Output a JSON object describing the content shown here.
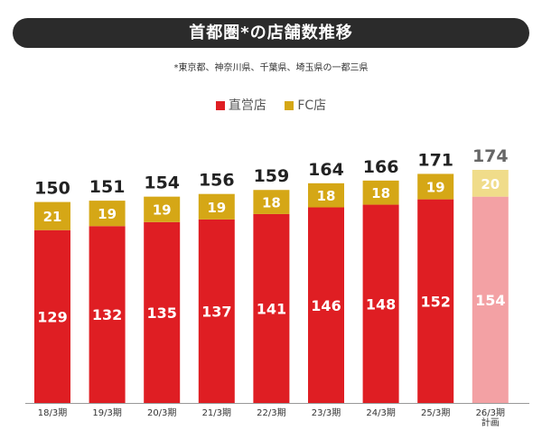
{
  "title": "首都圏*の店舗数推移",
  "subtitle": "*東京都、神奈川県、千葉県、埼玉県の一都三県",
  "legend": {
    "direct": "直営店",
    "fc": "FC店"
  },
  "colors": {
    "direct": "#df1e23",
    "fc": "#d5a716",
    "direct_plan": "#f3a1a4",
    "fc_plan": "#f0dc8a",
    "total_text": "#222222",
    "total_plan_text": "#666666",
    "axis": "#999999"
  },
  "chart_data": {
    "type": "bar",
    "stacked": true,
    "title": "首都圏*の店舗数推移",
    "categories": [
      "18/3期",
      "19/3期",
      "20/3期",
      "21/3期",
      "22/3期",
      "23/3期",
      "24/3期",
      "25/3期",
      "26/3期\n計画"
    ],
    "series": [
      {
        "name": "直営店",
        "values": [
          129,
          132,
          135,
          137,
          141,
          146,
          148,
          152,
          154
        ]
      },
      {
        "name": "FC店",
        "values": [
          21,
          19,
          19,
          19,
          18,
          18,
          18,
          19,
          20
        ]
      }
    ],
    "totals": [
      150,
      151,
      154,
      156,
      159,
      164,
      166,
      171,
      174
    ],
    "plan_index": 8,
    "ylim": [
      0,
      174
    ],
    "legend_position": "top"
  }
}
